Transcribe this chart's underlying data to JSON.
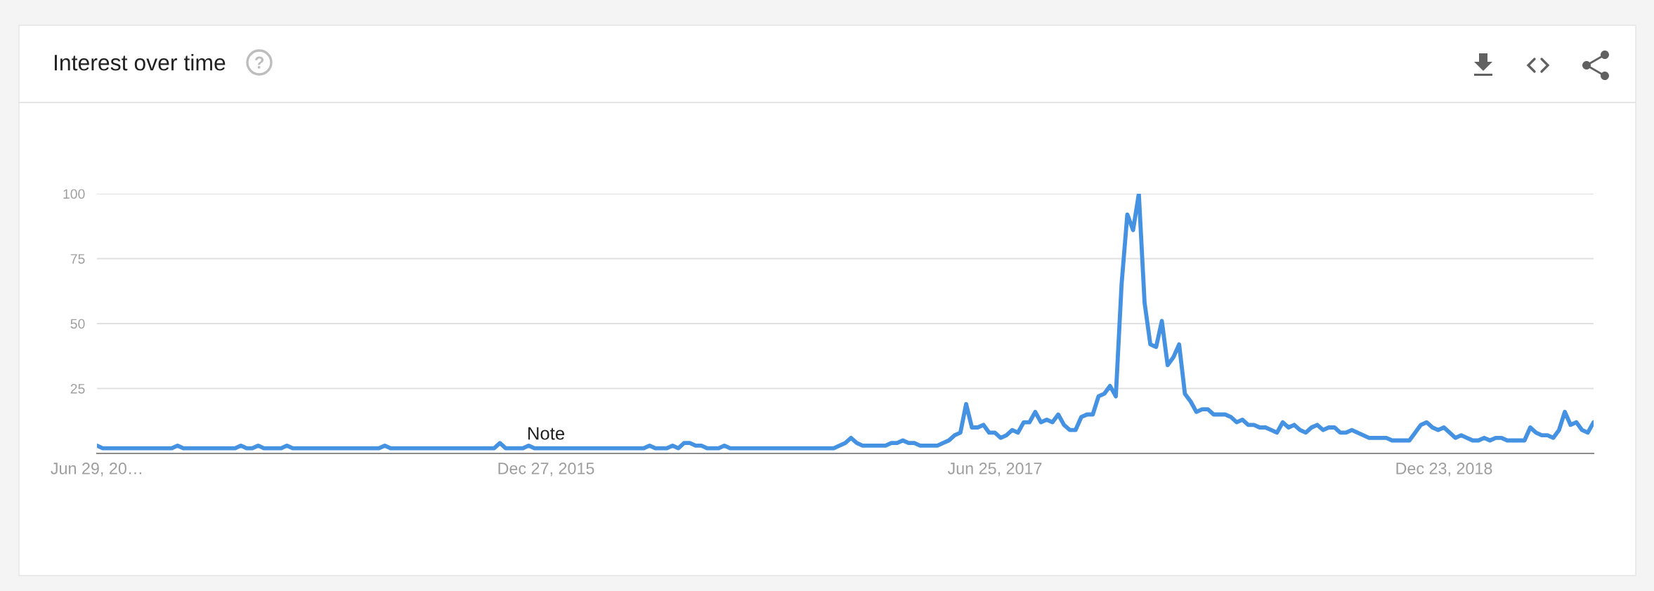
{
  "chart_data": {
    "type": "line",
    "title": "Interest over time",
    "x": [
      "2014-06-29",
      "2014-07-06",
      "2014-07-13",
      "2014-07-20",
      "2014-07-27",
      "2014-08-03",
      "2014-08-10",
      "2014-08-17",
      "2014-08-24",
      "2014-08-31",
      "2014-09-07",
      "2014-09-14",
      "2014-09-21",
      "2014-09-28",
      "2014-10-05",
      "2014-10-12",
      "2014-10-19",
      "2014-10-26",
      "2014-11-02",
      "2014-11-09",
      "2014-11-16",
      "2014-11-23",
      "2014-11-30",
      "2014-12-07",
      "2014-12-14",
      "2014-12-21",
      "2014-12-28",
      "2015-01-04",
      "2015-01-11",
      "2015-01-18",
      "2015-01-25",
      "2015-02-01",
      "2015-02-08",
      "2015-02-15",
      "2015-02-22",
      "2015-03-01",
      "2015-03-08",
      "2015-03-15",
      "2015-03-22",
      "2015-03-29",
      "2015-04-05",
      "2015-04-12",
      "2015-04-19",
      "2015-04-26",
      "2015-05-03",
      "2015-05-10",
      "2015-05-17",
      "2015-05-24",
      "2015-05-31",
      "2015-06-07",
      "2015-06-14",
      "2015-06-21",
      "2015-06-28",
      "2015-07-05",
      "2015-07-12",
      "2015-07-19",
      "2015-07-26",
      "2015-08-02",
      "2015-08-09",
      "2015-08-16",
      "2015-08-23",
      "2015-08-30",
      "2015-09-06",
      "2015-09-13",
      "2015-09-20",
      "2015-09-27",
      "2015-10-04",
      "2015-10-11",
      "2015-10-18",
      "2015-10-25",
      "2015-11-01",
      "2015-11-08",
      "2015-11-15",
      "2015-11-22",
      "2015-11-29",
      "2015-12-06",
      "2015-12-13",
      "2015-12-20",
      "2015-12-27",
      "2016-01-03",
      "2016-01-10",
      "2016-01-17",
      "2016-01-24",
      "2016-01-31",
      "2016-02-07",
      "2016-02-14",
      "2016-02-21",
      "2016-02-28",
      "2016-03-06",
      "2016-03-13",
      "2016-03-20",
      "2016-03-27",
      "2016-04-03",
      "2016-04-10",
      "2016-04-17",
      "2016-04-24",
      "2016-05-01",
      "2016-05-08",
      "2016-05-15",
      "2016-05-22",
      "2016-05-29",
      "2016-06-05",
      "2016-06-12",
      "2016-06-19",
      "2016-06-26",
      "2016-07-03",
      "2016-07-10",
      "2016-07-17",
      "2016-07-24",
      "2016-07-31",
      "2016-08-07",
      "2016-08-14",
      "2016-08-21",
      "2016-08-28",
      "2016-09-04",
      "2016-09-11",
      "2016-09-18",
      "2016-09-25",
      "2016-10-02",
      "2016-10-09",
      "2016-10-16",
      "2016-10-23",
      "2016-10-30",
      "2016-11-06",
      "2016-11-13",
      "2016-11-20",
      "2016-11-27",
      "2016-12-04",
      "2016-12-11",
      "2016-12-18",
      "2016-12-25",
      "2017-01-01",
      "2017-01-08",
      "2017-01-15",
      "2017-01-22",
      "2017-01-29",
      "2017-02-05",
      "2017-02-12",
      "2017-02-19",
      "2017-02-26",
      "2017-03-05",
      "2017-03-12",
      "2017-03-19",
      "2017-03-26",
      "2017-04-02",
      "2017-04-09",
      "2017-04-16",
      "2017-04-23",
      "2017-04-30",
      "2017-05-07",
      "2017-05-14",
      "2017-05-21",
      "2017-05-28",
      "2017-06-04",
      "2017-06-11",
      "2017-06-18",
      "2017-06-25",
      "2017-07-02",
      "2017-07-09",
      "2017-07-16",
      "2017-07-23",
      "2017-07-30",
      "2017-08-06",
      "2017-08-13",
      "2017-08-20",
      "2017-08-27",
      "2017-09-03",
      "2017-09-10",
      "2017-09-17",
      "2017-09-24",
      "2017-10-01",
      "2017-10-08",
      "2017-10-15",
      "2017-10-22",
      "2017-10-29",
      "2017-11-05",
      "2017-11-12",
      "2017-11-19",
      "2017-11-26",
      "2017-12-03",
      "2017-12-10",
      "2017-12-17",
      "2017-12-24",
      "2017-12-31",
      "2018-01-07",
      "2018-01-14",
      "2018-01-21",
      "2018-01-28",
      "2018-02-04",
      "2018-02-11",
      "2018-02-18",
      "2018-02-25",
      "2018-03-04",
      "2018-03-11",
      "2018-03-18",
      "2018-03-25",
      "2018-04-01",
      "2018-04-08",
      "2018-04-15",
      "2018-04-22",
      "2018-04-29",
      "2018-05-06",
      "2018-05-13",
      "2018-05-20",
      "2018-05-27",
      "2018-06-03",
      "2018-06-10",
      "2018-06-17",
      "2018-06-24",
      "2018-07-01",
      "2018-07-08",
      "2018-07-15",
      "2018-07-22",
      "2018-07-29",
      "2018-08-05",
      "2018-08-12",
      "2018-08-19",
      "2018-08-26",
      "2018-09-02",
      "2018-09-09",
      "2018-09-16",
      "2018-09-23",
      "2018-09-30",
      "2018-10-07",
      "2018-10-14",
      "2018-10-21",
      "2018-10-28",
      "2018-11-04",
      "2018-11-11",
      "2018-11-18",
      "2018-11-25",
      "2018-12-02",
      "2018-12-09",
      "2018-12-16",
      "2018-12-23",
      "2018-12-30",
      "2019-01-06",
      "2019-01-13",
      "2019-01-20",
      "2019-01-27",
      "2019-02-03",
      "2019-02-10",
      "2019-02-17",
      "2019-02-24",
      "2019-03-03",
      "2019-03-10",
      "2019-03-17",
      "2019-03-24",
      "2019-03-31",
      "2019-04-07",
      "2019-04-14",
      "2019-04-21",
      "2019-04-28",
      "2019-05-05",
      "2019-05-12",
      "2019-05-19",
      "2019-05-26",
      "2019-06-02",
      "2019-06-09",
      "2019-06-16",
      "2019-06-23"
    ],
    "series": [
      {
        "color": "#4592e2",
        "values": [
          3,
          2,
          2,
          2,
          2,
          2,
          2,
          2,
          2,
          2,
          2,
          2,
          2,
          2,
          3,
          2,
          2,
          2,
          2,
          2,
          2,
          2,
          2,
          2,
          2,
          3,
          2,
          2,
          3,
          2,
          2,
          2,
          2,
          3,
          2,
          2,
          2,
          2,
          2,
          2,
          2,
          2,
          2,
          2,
          2,
          2,
          2,
          2,
          2,
          2,
          3,
          2,
          2,
          2,
          2,
          2,
          2,
          2,
          2,
          2,
          2,
          2,
          2,
          2,
          2,
          2,
          2,
          2,
          2,
          2,
          4,
          2,
          2,
          2,
          2,
          3,
          2,
          2,
          2,
          2,
          2,
          2,
          2,
          2,
          2,
          2,
          2,
          2,
          2,
          2,
          2,
          2,
          2,
          2,
          2,
          2,
          3,
          2,
          2,
          2,
          3,
          2,
          4,
          4,
          3,
          3,
          2,
          2,
          2,
          3,
          2,
          2,
          2,
          2,
          2,
          2,
          2,
          2,
          2,
          2,
          2,
          2,
          2,
          2,
          2,
          2,
          2,
          2,
          2,
          3,
          4,
          6,
          4,
          3,
          3,
          3,
          3,
          3,
          4,
          4,
          5,
          4,
          4,
          3,
          3,
          3,
          3,
          4,
          5,
          7,
          8,
          19,
          10,
          10,
          11,
          8,
          8,
          6,
          7,
          9,
          8,
          12,
          12,
          16,
          12,
          13,
          12,
          15,
          11,
          9,
          9,
          14,
          15,
          15,
          22,
          23,
          26,
          22,
          65,
          92,
          86,
          100,
          58,
          42,
          41,
          51,
          34,
          37,
          42,
          23,
          20,
          16,
          17,
          17,
          15,
          15,
          15,
          14,
          12,
          13,
          11,
          11,
          10,
          10,
          9,
          8,
          12,
          10,
          11,
          9,
          8,
          10,
          11,
          9,
          10,
          10,
          8,
          8,
          9,
          8,
          7,
          6,
          6,
          6,
          6,
          5,
          5,
          5,
          5,
          8,
          11,
          12,
          10,
          9,
          10,
          8,
          6,
          7,
          6,
          5,
          5,
          6,
          5,
          6,
          6,
          5,
          5,
          5,
          5,
          10,
          8,
          7,
          7,
          6,
          9,
          16,
          11,
          12,
          9,
          8,
          12
        ]
      }
    ],
    "xlim": [
      "2014-06-29",
      "2019-06-23"
    ],
    "xticks": [
      {
        "value": "2014-06-29",
        "label": "Jun 29, 20…"
      },
      {
        "value": "2015-12-27",
        "label": "Dec 27, 2015"
      },
      {
        "value": "2017-06-25",
        "label": "Jun 25, 2017"
      },
      {
        "value": "2018-12-23",
        "label": "Dec 23, 2018"
      }
    ],
    "ylim": [
      0,
      100
    ],
    "yticks": [
      25,
      50,
      75,
      100
    ],
    "grid": "y",
    "annotations": [
      {
        "text": "Note",
        "x": "2015-12-27",
        "y": 2
      }
    ]
  }
}
